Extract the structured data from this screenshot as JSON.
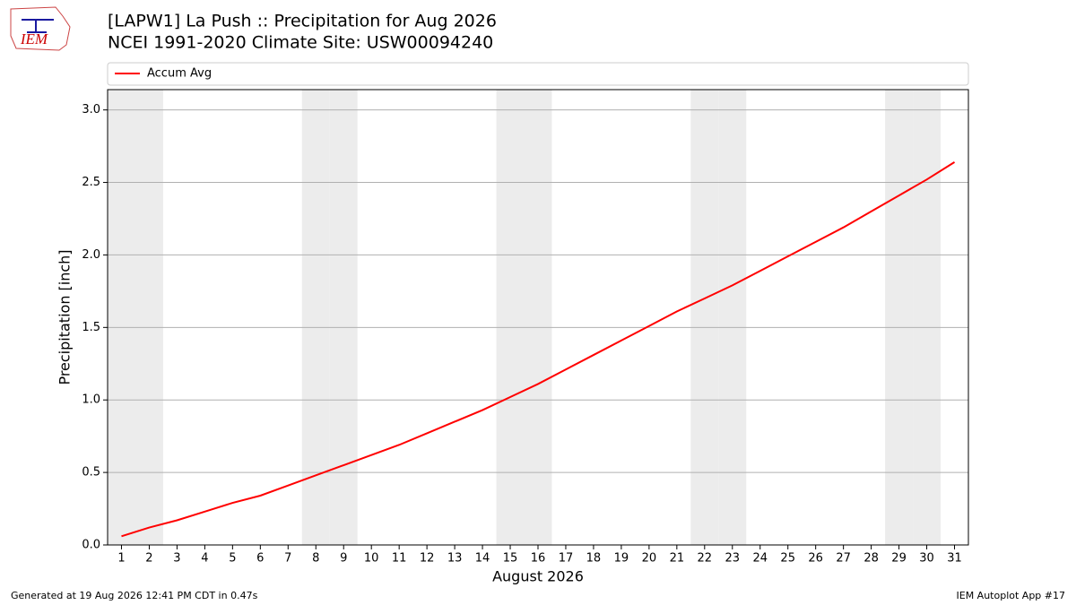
{
  "logo_text": "IEM",
  "footer_left": "Generated at 19 Aug 2026 12:41 PM CDT in 0.47s",
  "footer_right": "IEM Autoplot App #17",
  "chart_data": {
    "type": "line",
    "title": "[LAPW1] La Push :: Precipitation for Aug 2026",
    "subtitle": "NCEI 1991-2020 Climate Site: USW00094240",
    "xlabel": "August 2026",
    "ylabel": "Precipitation [inch]",
    "x": [
      1,
      2,
      3,
      4,
      5,
      6,
      7,
      8,
      9,
      10,
      11,
      12,
      13,
      14,
      15,
      16,
      17,
      18,
      19,
      20,
      21,
      22,
      23,
      24,
      25,
      26,
      27,
      28,
      29,
      30,
      31
    ],
    "series": [
      {
        "name": "Accum Avg",
        "color": "#ff0000",
        "values": [
          0.06,
          0.12,
          0.17,
          0.23,
          0.29,
          0.34,
          0.41,
          0.48,
          0.55,
          0.62,
          0.69,
          0.77,
          0.85,
          0.93,
          1.02,
          1.11,
          1.21,
          1.31,
          1.41,
          1.51,
          1.61,
          1.7,
          1.79,
          1.89,
          1.99,
          2.09,
          2.19,
          2.3,
          2.41,
          2.52,
          2.64
        ]
      }
    ],
    "xlim": [
      0.5,
      31.5
    ],
    "ylim": [
      0,
      3.14
    ],
    "xticks": [
      1,
      2,
      3,
      4,
      5,
      6,
      7,
      8,
      9,
      10,
      11,
      12,
      13,
      14,
      15,
      16,
      17,
      18,
      19,
      20,
      21,
      22,
      23,
      24,
      25,
      26,
      27,
      28,
      29,
      30,
      31
    ],
    "yticks": [
      {
        "value": 0,
        "label": "0.0"
      },
      0.5,
      {
        "value": 1,
        "label": "1.0"
      },
      1.5,
      {
        "value": 2,
        "label": "2.0"
      },
      2.5,
      {
        "value": 3,
        "label": "3.0"
      }
    ],
    "grid": true,
    "legend": "top",
    "shaded_days": [
      1,
      2,
      8,
      9,
      15,
      16,
      22,
      23,
      29,
      30
    ],
    "shade_color": "#ececec"
  }
}
